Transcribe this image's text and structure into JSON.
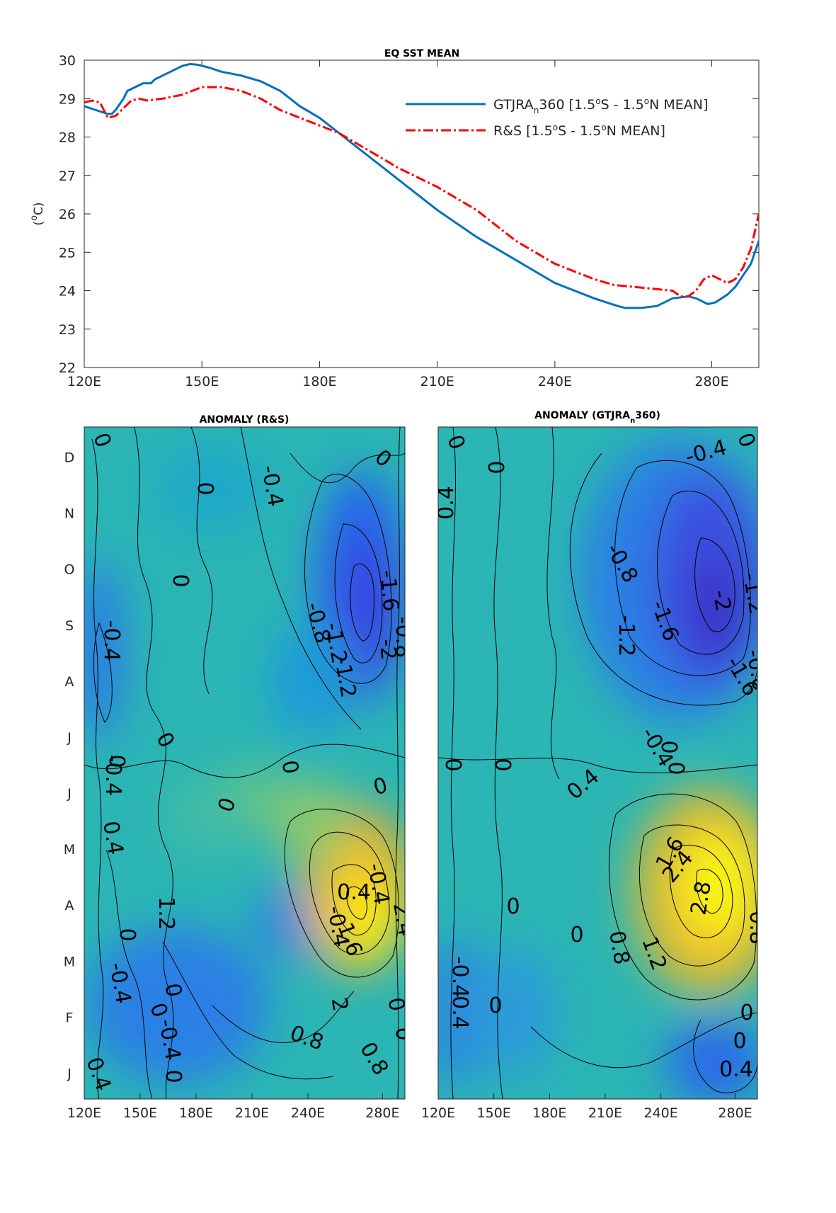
{
  "colors": {
    "series_gtjra": "#0072BD",
    "series_rs": "#FF0000",
    "colormap": "parula",
    "contour_line": "#000000"
  },
  "chart_data": [
    {
      "type": "line",
      "title": "EQ SST MEAN",
      "xlabel": "",
      "ylabel": "(°C)",
      "xlim": [
        120,
        292
      ],
      "ylim": [
        22,
        30
      ],
      "xticks": [
        "120E",
        "150E",
        "180E",
        "210E",
        "240E",
        "280E"
      ],
      "yticks": [
        "22",
        "23",
        "24",
        "25",
        "26",
        "27",
        "28",
        "29",
        "30"
      ],
      "legend_position": "top-right",
      "series": [
        {
          "name": "GTJRAn360 [1.5°S - 1.5°N MEAN]",
          "legend_parts": [
            "GTJRA",
            "n",
            "360 [1.5",
            "o",
            "S - 1.5",
            "o",
            "N MEAN]"
          ],
          "style": "solid",
          "x": [
            120,
            123,
            126,
            127,
            128,
            130,
            131,
            133,
            135,
            137,
            138,
            140,
            142,
            145,
            147,
            149,
            152,
            155,
            160,
            165,
            170,
            175,
            180,
            185,
            190,
            195,
            200,
            205,
            210,
            220,
            230,
            240,
            250,
            256,
            258,
            262,
            266,
            268,
            270,
            274,
            276,
            278,
            279,
            281,
            284,
            286,
            288,
            290,
            292
          ],
          "y": [
            28.8,
            28.7,
            28.6,
            28.6,
            28.7,
            29.0,
            29.2,
            29.3,
            29.4,
            29.4,
            29.5,
            29.6,
            29.7,
            29.85,
            29.9,
            29.88,
            29.8,
            29.7,
            29.6,
            29.45,
            29.2,
            28.8,
            28.5,
            28.1,
            27.7,
            27.3,
            26.9,
            26.5,
            26.1,
            25.4,
            24.8,
            24.2,
            23.8,
            23.6,
            23.55,
            23.55,
            23.6,
            23.7,
            23.8,
            23.85,
            23.8,
            23.7,
            23.65,
            23.7,
            23.9,
            24.1,
            24.4,
            24.7,
            25.3
          ]
        },
        {
          "name": "R&S [1.5°S - 1.5°N MEAN]",
          "legend_parts": [
            "R&S [1.5",
            "o",
            "S - 1.5",
            "o",
            "N MEAN]"
          ],
          "style": "dashdot",
          "x": [
            120,
            122,
            124,
            125,
            126,
            128,
            130,
            132,
            134,
            136,
            140,
            145,
            150,
            155,
            160,
            165,
            170,
            175,
            180,
            185,
            190,
            195,
            200,
            205,
            210,
            215,
            220,
            225,
            230,
            235,
            240,
            245,
            250,
            255,
            260,
            265,
            270,
            272,
            274,
            276,
            278,
            280,
            282,
            284,
            286,
            288,
            290,
            292
          ],
          "y": [
            28.9,
            28.95,
            28.9,
            28.7,
            28.5,
            28.55,
            28.75,
            28.95,
            29.0,
            28.95,
            29.0,
            29.1,
            29.3,
            29.3,
            29.2,
            29.0,
            28.7,
            28.5,
            28.3,
            28.1,
            27.8,
            27.5,
            27.2,
            26.95,
            26.7,
            26.4,
            26.1,
            25.7,
            25.3,
            25.0,
            24.7,
            24.5,
            24.3,
            24.15,
            24.1,
            24.05,
            24.0,
            23.85,
            23.85,
            24.0,
            24.3,
            24.4,
            24.3,
            24.2,
            24.3,
            24.6,
            25.1,
            26.0
          ]
        }
      ]
    },
    {
      "type": "heatmap",
      "title": "ANOMALY (R&S)",
      "xlabel": "",
      "ylabel": "",
      "xticks": [
        "120E",
        "150E",
        "180E",
        "210E",
        "240E",
        "280E"
      ],
      "yticks": [
        "J",
        "F",
        "M",
        "A",
        "M",
        "J",
        "J",
        "A",
        "S",
        "O",
        "N",
        "D"
      ],
      "contour_labels": [
        "0",
        "-0.4",
        "0",
        "0",
        "-0.4",
        "0",
        "-0.4",
        "-0.4",
        "-0.8",
        "-1.2",
        "-1.6",
        "-2",
        "-0.8",
        "-1.2",
        "0",
        "0",
        "0",
        "0",
        "0",
        "0.4",
        "-0.4",
        "0.4",
        "1.6",
        "2.4",
        "2",
        "0.8",
        "0.8",
        "0",
        "-0.4",
        "0",
        "0",
        "-0.4",
        "0",
        "1.2",
        "0.4",
        "0",
        "0"
      ]
    },
    {
      "type": "heatmap",
      "title": "ANOMALY (GTJRAn360)",
      "title_parts": [
        "ANOMALY (GTJRA",
        "n",
        "360)"
      ],
      "xlabel": "",
      "ylabel": "",
      "xticks": [
        "120E",
        "150E",
        "180E",
        "210E",
        "240E",
        "280E"
      ],
      "yticks": [],
      "contour_labels": [
        "0",
        "0.4",
        "0",
        "-0.4",
        "0",
        "-0.8",
        "-1.6",
        "-1.2",
        "-2",
        "-1.2",
        "-1.6",
        "-0.8",
        "0",
        "0",
        "0",
        "0.4",
        "-0.4",
        "0",
        "1.6",
        "2.4",
        "2.8",
        "0.8",
        "1.2",
        "0.8",
        "1.2",
        "0",
        "0",
        "-0.4",
        "0.4",
        "0",
        "0",
        "0.4",
        "0"
      ]
    }
  ]
}
